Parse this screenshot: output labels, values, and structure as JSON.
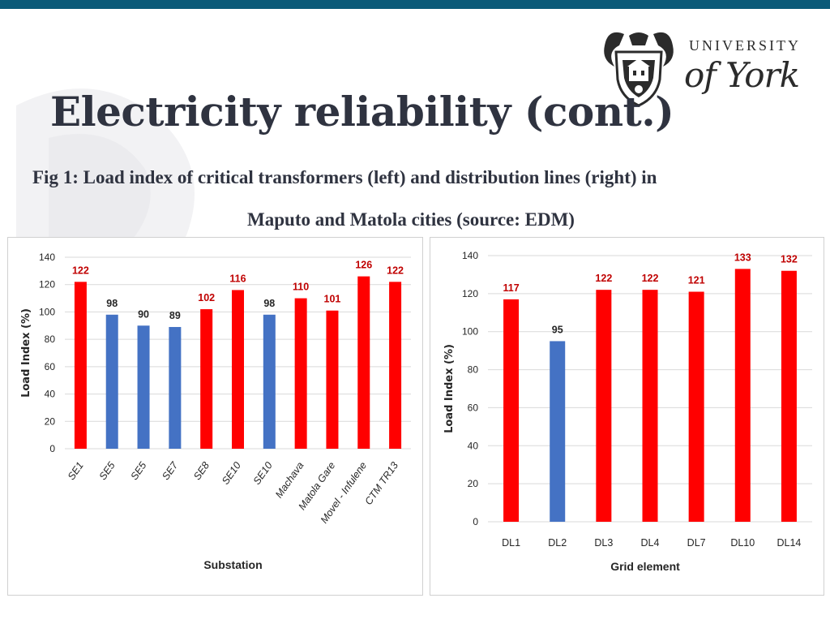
{
  "slide": {
    "title": "Electricity reliability (cont.)",
    "caption_line1": "Fig 1: Load index of critical transformers (left) and distribution lines (right) in",
    "caption_line2": "Maputo and Matola cities (source: EDM)"
  },
  "logo": {
    "university": "UNIVERSITY",
    "york": "of York"
  },
  "colors": {
    "red": "#ff0000",
    "blue": "#4472c4",
    "label_red": "#c00000",
    "label_dark": "#262626",
    "grid": "#d9d9d9",
    "topbar": "#0a5a78"
  },
  "chart_data": [
    {
      "type": "bar",
      "categories": [
        "SE1",
        "SE5",
        "SE5",
        "SE7",
        "SE8",
        "SE10",
        "SE10",
        "Machava",
        "Matola Gare",
        "Movel - Infulene",
        "CTM TR13"
      ],
      "values": [
        122,
        98,
        90,
        89,
        102,
        116,
        98,
        110,
        101,
        126,
        122
      ],
      "bar_colors": [
        "red",
        "blue",
        "blue",
        "blue",
        "red",
        "red",
        "blue",
        "red",
        "red",
        "red",
        "red"
      ],
      "data_labels": [
        "122",
        "98",
        "90",
        "89",
        "102",
        "116",
        "98",
        "110",
        "101",
        "126",
        "122"
      ],
      "xlabel": "Substation",
      "ylabel": "Load Index (%)",
      "ylim": [
        0,
        140
      ],
      "yticks": [
        "0",
        "20",
        "40",
        "60",
        "80",
        "100",
        "120",
        "140"
      ],
      "grid": true,
      "legend": "none"
    },
    {
      "type": "bar",
      "categories": [
        "DL1",
        "DL2",
        "DL3",
        "DL4",
        "DL7",
        "DL10",
        "DL14"
      ],
      "values": [
        117,
        95,
        122,
        122,
        121,
        133,
        132
      ],
      "bar_colors": [
        "red",
        "blue",
        "red",
        "red",
        "red",
        "red",
        "red"
      ],
      "data_labels": [
        "117",
        "95",
        "122",
        "122",
        "121",
        "133",
        "132"
      ],
      "xlabel": "Grid element",
      "ylabel": "Load Index (%)",
      "ylim": [
        0,
        140
      ],
      "yticks": [
        "0",
        "20",
        "40",
        "60",
        "80",
        "100",
        "120",
        "140"
      ],
      "grid": true,
      "legend": "none"
    }
  ]
}
